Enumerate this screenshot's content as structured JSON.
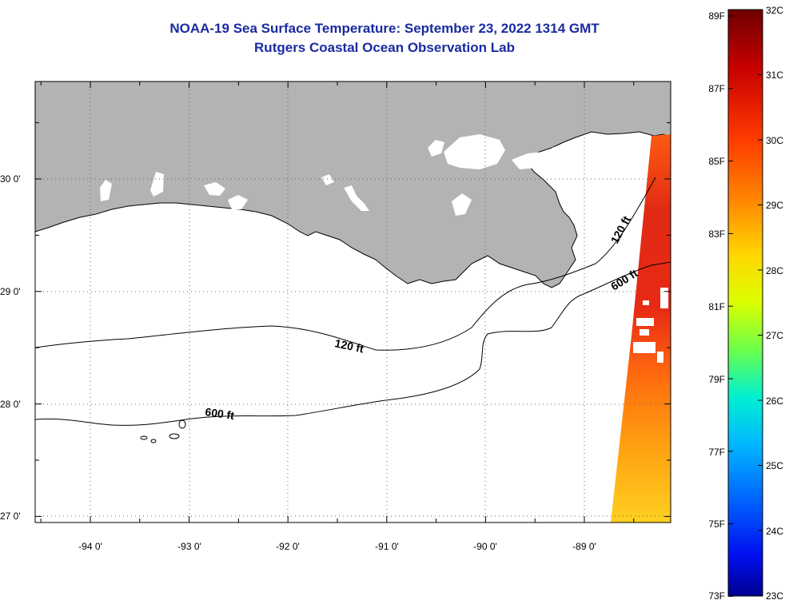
{
  "title": {
    "line1": "NOAA-19 Sea Surface Temperature:  September 23, 2022 1314 GMT",
    "line2": "Rutgers Coastal Ocean Observation Lab"
  },
  "axes": {
    "lon_labels": [
      "-94 0'",
      "-93 0'",
      "-92 0'",
      "-91 0'",
      "-90 0'",
      "-89 0'"
    ],
    "lat_labels": [
      "30 0'",
      "29 0'",
      "28 0'",
      "27 0'"
    ]
  },
  "contours": {
    "shallow_label": "120 ft",
    "deep_label": "600 ft"
  },
  "colorbar": {
    "f_labels": [
      "89F",
      "87F",
      "85F",
      "83F",
      "81F",
      "79F",
      "77F",
      "75F",
      "73F"
    ],
    "c_labels": [
      "32C",
      "31C",
      "30C",
      "29C",
      "28C",
      "27C",
      "26C",
      "25C",
      "24C",
      "23C"
    ]
  },
  "colors": {
    "land": "#b3b3b3",
    "title": "#1a2ba0",
    "warm_sst": "#e83a12"
  }
}
